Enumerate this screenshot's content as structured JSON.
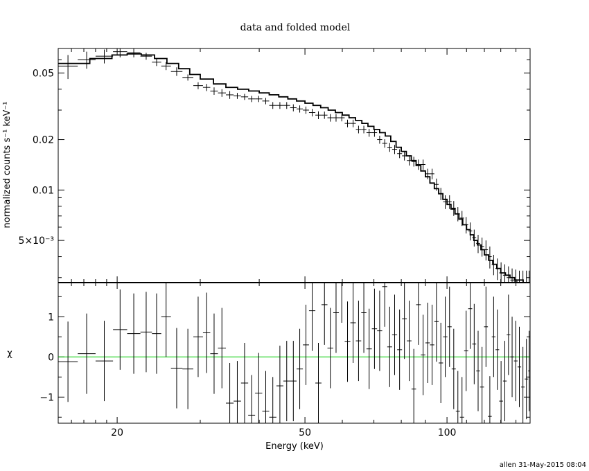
{
  "chart_data": {
    "type": "line",
    "title": "data and folded model",
    "xlabel": "Energy (keV)",
    "x_scale": "log",
    "xlim": [
      15.0,
      150.0
    ],
    "x_ticks": [
      {
        "value": 20,
        "label": "20"
      },
      {
        "value": 50,
        "label": "50"
      },
      {
        "value": 100,
        "label": "100"
      }
    ],
    "footer": "allen 31-May-2015 08:04",
    "panels": [
      {
        "name": "spectrum",
        "ylabel": "normalized counts s⁻¹ keV⁻¹",
        "y_scale": "log",
        "ylim": [
          0.0028,
          0.07
        ],
        "y_ticks": [
          {
            "value": 0.05,
            "label": "0.05"
          },
          {
            "value": 0.02,
            "label": "0.02"
          },
          {
            "value": 0.01,
            "label": "0.01"
          },
          {
            "value": 0.005,
            "label": "5×10⁻³"
          }
        ],
        "data": {
          "edges": [
            15.0,
            16.5,
            18.0,
            19.6,
            21.0,
            22.4,
            23.7,
            24.8,
            26.0,
            27.5,
            29.0,
            30.4,
            31.5,
            32.7,
            34.0,
            35.3,
            36.6,
            37.9,
            39.2,
            40.6,
            42.0,
            43.5,
            45.0,
            46.5,
            48.0,
            49.5,
            51.0,
            52.6,
            54.2,
            55.8,
            57.4,
            59.0,
            60.7,
            62.4,
            64.1,
            65.8,
            67.5,
            69.3,
            71.1,
            72.9,
            74.7,
            76.5,
            78.4,
            80.3,
            82.2,
            84.1,
            86.0,
            88.0,
            90.0,
            92.0,
            94.0,
            96.0,
            98.1,
            100.2,
            102.3,
            104.4,
            106.5,
            108.7,
            110.9,
            113.1,
            115.3,
            117.5,
            119.8,
            122.1,
            124.4,
            126.7,
            129.0,
            131.4,
            133.8,
            136.2,
            138.6,
            141.1,
            143.6,
            146.1,
            148.6,
            150.0
          ],
          "values": [
            0.055,
            0.06,
            0.063,
            0.067,
            0.066,
            0.063,
            0.058,
            0.055,
            0.051,
            0.047,
            0.042,
            0.041,
            0.039,
            0.038,
            0.037,
            0.0365,
            0.036,
            0.035,
            0.035,
            0.034,
            0.032,
            0.032,
            0.032,
            0.031,
            0.0305,
            0.03,
            0.029,
            0.028,
            0.028,
            0.027,
            0.027,
            0.027,
            0.025,
            0.025,
            0.023,
            0.023,
            0.022,
            0.022,
            0.02,
            0.019,
            0.018,
            0.0175,
            0.0165,
            0.016,
            0.015,
            0.0148,
            0.0142,
            0.0142,
            0.0125,
            0.0125,
            0.0108,
            0.0095,
            0.0085,
            0.0085,
            0.0078,
            0.0072,
            0.0068,
            0.0062,
            0.0057,
            0.0052,
            0.0048,
            0.0046,
            0.0044,
            0.004,
            0.0036,
            0.0034,
            0.0032,
            0.0031,
            0.003,
            0.0029,
            0.00285,
            0.0028,
            0.0028,
            0.0028,
            0.0028
          ],
          "errors": [
            0.009,
            0.007,
            0.006,
            0.005,
            0.004,
            0.003,
            0.003,
            0.003,
            0.003,
            0.002,
            0.002,
            0.002,
            0.002,
            0.002,
            0.002,
            0.0015,
            0.0015,
            0.0015,
            0.0015,
            0.0015,
            0.0015,
            0.0015,
            0.0015,
            0.0015,
            0.0015,
            0.0015,
            0.0015,
            0.0015,
            0.0014,
            0.0014,
            0.0014,
            0.0013,
            0.0013,
            0.0013,
            0.0012,
            0.0012,
            0.0012,
            0.0012,
            0.0011,
            0.0011,
            0.0011,
            0.0011,
            0.001,
            0.001,
            0.001,
            0.001,
            0.001,
            0.001,
            0.0009,
            0.0009,
            0.0009,
            0.0008,
            0.0008,
            0.0008,
            0.0008,
            0.0007,
            0.0007,
            0.0007,
            0.0007,
            0.0006,
            0.0006,
            0.0006,
            0.0006,
            0.0006,
            0.0005,
            0.0005,
            0.0005,
            0.0005,
            0.0005,
            0.0005,
            0.0005,
            0.0005,
            0.0005,
            0.0005,
            0.0005
          ]
        },
        "model": {
          "edges": [
            15.0,
            17.5,
            19.5,
            21.0,
            22.5,
            24.0,
            25.5,
            27.0,
            28.5,
            30.0,
            32.0,
            34.0,
            36.0,
            38.0,
            40.0,
            42.0,
            44.0,
            46.0,
            48.0,
            50.0,
            52.0,
            54.0,
            56.0,
            58.0,
            60.0,
            62.0,
            64.0,
            66.0,
            68.0,
            70.0,
            72.0,
            74.0,
            76.0,
            78.0,
            80.0,
            82.0,
            84.0,
            86.0,
            88.0,
            90.0,
            92.0,
            94.0,
            96.0,
            98.0,
            100.0,
            102.0,
            104.0,
            106.0,
            108.0,
            110.0,
            112.0,
            114.0,
            116.0,
            118.0,
            120.0,
            122.5,
            125.0,
            127.5,
            130.0,
            133.0,
            136.0,
            139.0,
            142.0,
            145.0,
            148.0,
            150.0
          ],
          "values": [
            0.057,
            0.061,
            0.064,
            0.065,
            0.064,
            0.061,
            0.057,
            0.053,
            0.049,
            0.046,
            0.043,
            0.041,
            0.04,
            0.039,
            0.038,
            0.037,
            0.036,
            0.035,
            0.034,
            0.033,
            0.032,
            0.031,
            0.03,
            0.029,
            0.028,
            0.027,
            0.026,
            0.025,
            0.024,
            0.023,
            0.022,
            0.021,
            0.0195,
            0.018,
            0.017,
            0.016,
            0.015,
            0.014,
            0.013,
            0.012,
            0.011,
            0.0102,
            0.0095,
            0.0088,
            0.0082,
            0.0077,
            0.0072,
            0.0067,
            0.0062,
            0.0058,
            0.0054,
            0.005,
            0.0047,
            0.0044,
            0.0041,
            0.0038,
            0.0036,
            0.0034,
            0.0032,
            0.0031,
            0.003,
            0.0029,
            0.0029,
            0.0028,
            0.0028
          ]
        },
        "data_color": "#000000",
        "model_color": "#000000"
      },
      {
        "name": "residuals",
        "ylabel": "χ",
        "y_scale": "linear",
        "ylim": [
          -1.65,
          1.85
        ],
        "y_ticks": [
          {
            "value": 1,
            "label": "1"
          },
          {
            "value": 0,
            "label": "0"
          },
          {
            "value": -1,
            "label": "−1"
          }
        ],
        "zero_line_color": "#00cc00",
        "data": {
          "edges": [
            15.0,
            16.5,
            18.0,
            19.6,
            21.0,
            22.4,
            23.7,
            24.8,
            26.0,
            27.5,
            29.0,
            30.4,
            31.5,
            32.7,
            34.0,
            35.3,
            36.6,
            37.9,
            39.2,
            40.6,
            42.0,
            43.5,
            45.0,
            46.5,
            48.0,
            49.5,
            51.0,
            52.6,
            54.2,
            55.8,
            57.4,
            59.0,
            60.7,
            62.4,
            64.1,
            65.8,
            67.5,
            69.3,
            71.1,
            72.9,
            74.7,
            76.5,
            78.4,
            80.3,
            82.2,
            84.1,
            86.0,
            88.0,
            90.0,
            92.0,
            94.0,
            96.0,
            98.1,
            100.2,
            102.3,
            104.4,
            106.5,
            108.7,
            110.9,
            113.1,
            115.3,
            117.5,
            119.8,
            122.1,
            124.4,
            126.7,
            129.0,
            131.4,
            133.8,
            136.2,
            138.6,
            141.1,
            143.6,
            146.1,
            148.6,
            150.0
          ],
          "values": [
            -0.12,
            0.08,
            -0.1,
            0.68,
            0.58,
            0.62,
            0.58,
            1.0,
            -0.28,
            -0.3,
            0.5,
            0.6,
            0.08,
            0.22,
            -1.15,
            -1.1,
            -0.65,
            -1.45,
            -0.9,
            -1.35,
            -1.5,
            -0.72,
            -0.6,
            -0.6,
            -0.3,
            0.3,
            1.15,
            -0.65,
            1.3,
            0.22,
            1.1,
            1.85,
            0.38,
            0.85,
            0.4,
            1.1,
            0.2,
            0.7,
            0.65,
            1.75,
            0.25,
            0.55,
            0.18,
            0.95,
            0.4,
            -0.8,
            1.3,
            0.05,
            0.35,
            0.3,
            0.88,
            -0.15,
            0.5,
            0.75,
            -0.3,
            -1.35,
            -1.5,
            0.15,
            1.2,
            0.32,
            -0.35,
            -0.75,
            0.75,
            -1.48,
            0.5,
            0.18,
            -1.1,
            -0.6,
            0.55,
            0.0,
            -0.1,
            -0.25,
            -0.75,
            -0.55,
            -0.35
          ],
          "errors": [
            1.0,
            1.0,
            1.0,
            1.0,
            1.0,
            1.0,
            1.0,
            1.0,
            1.0,
            1.0,
            1.0,
            1.0,
            1.0,
            1.0,
            1.0,
            1.0,
            1.0,
            1.0,
            1.0,
            1.0,
            1.0,
            1.0,
            1.0,
            1.0,
            1.0,
            1.0,
            1.0,
            1.0,
            1.0,
            1.0,
            1.0,
            1.0,
            1.0,
            1.0,
            1.0,
            1.0,
            1.0,
            1.0,
            1.0,
            1.0,
            1.0,
            1.0,
            1.0,
            1.0,
            1.0,
            1.0,
            1.0,
            1.0,
            1.0,
            1.0,
            1.0,
            1.0,
            1.0,
            1.0,
            1.0,
            1.0,
            1.0,
            1.0,
            1.0,
            1.0,
            1.0,
            1.0,
            1.0,
            1.0,
            1.0,
            1.0,
            1.0,
            1.0,
            1.0,
            1.0,
            1.0,
            1.0,
            1.0,
            1.0,
            1.0
          ]
        }
      }
    ]
  }
}
